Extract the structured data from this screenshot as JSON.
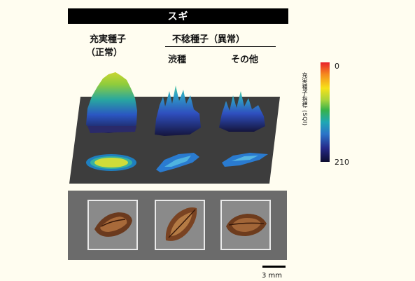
{
  "title": "スギ",
  "labels": {
    "filled_seed_line1": "充実種子",
    "filled_seed_line2": "（正常）",
    "empty_seed_group": "不稔種子（異常）",
    "tannin_seed": "渋種",
    "other": "その他"
  },
  "colorbar": {
    "title": "充実種子指標 (SQI)",
    "top_value": "0",
    "bottom_value": "210",
    "colors": [
      "#e8202a",
      "#f6e21a",
      "#37b24a",
      "#2b74c8",
      "#0d0d30"
    ]
  },
  "scale": {
    "label": "3 mm"
  }
}
